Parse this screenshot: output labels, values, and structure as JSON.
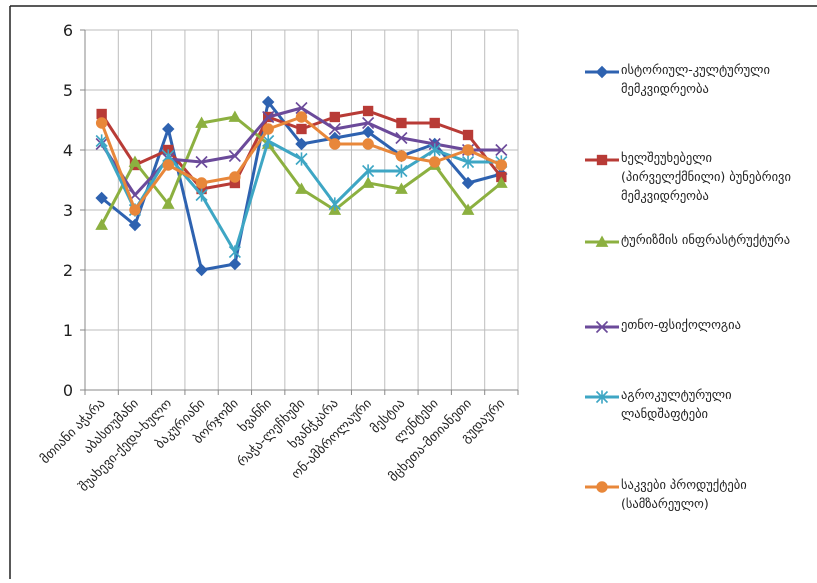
{
  "chart_data": {
    "type": "line",
    "categories": [
      "მთიანი აჭარა",
      "აბასთუმანი",
      "შუახევი-ქედა-ხულო",
      "ბაკურიანი",
      "ბორჯომი",
      "ხვანჩი",
      "რაჭა-ლეჩხუმი",
      "ხვანჭკარა",
      "ონ-ამბროლაური",
      "მესტია",
      "ლენტეხი",
      "მცხეთა-მთიანეთი",
      "გუდაური"
    ],
    "ylim": [
      0,
      6
    ],
    "yticks": [
      "0",
      "1",
      "2",
      "3",
      "4",
      "5",
      "6"
    ],
    "grid": true,
    "legend_position": "right",
    "series": [
      {
        "name": "ისტორიულ-კულტურული მემკვიდრეობა",
        "color": "#2e62b0",
        "marker": "diamond",
        "values": [
          3.2,
          2.75,
          4.35,
          2.0,
          2.1,
          4.8,
          4.1,
          4.2,
          4.3,
          3.9,
          4.1,
          3.45,
          3.6
        ]
      },
      {
        "name": "ხელშეუხებელი (პირველქმნილი) ბუნებრივი მემკვიდრეობა",
        "color": "#b83b36",
        "marker": "square",
        "values": [
          4.6,
          3.75,
          4.0,
          3.35,
          3.45,
          4.55,
          4.35,
          4.55,
          4.65,
          4.45,
          4.45,
          4.25,
          3.55
        ]
      },
      {
        "name": "ტურიზმის ინფრასტრუქტურა",
        "color": "#8cb040",
        "marker": "triangle",
        "values": [
          2.75,
          3.8,
          3.1,
          4.45,
          4.55,
          4.1,
          3.35,
          3.0,
          3.45,
          3.35,
          3.75,
          3.0,
          3.45
        ]
      },
      {
        "name": "ეთნო-ფსიქოლოგია",
        "color": "#6b4a9a",
        "marker": "x",
        "values": [
          4.1,
          3.25,
          3.85,
          3.8,
          3.9,
          4.55,
          4.7,
          4.35,
          4.45,
          4.2,
          4.1,
          4.0,
          4.0
        ]
      },
      {
        "name": "აგროკულტურული ლანდშაფტები",
        "color": "#3ea6c4",
        "marker": "asterisk",
        "values": [
          4.15,
          3.0,
          3.9,
          3.25,
          2.3,
          4.15,
          3.85,
          3.1,
          3.65,
          3.65,
          4.0,
          3.8,
          3.8
        ]
      },
      {
        "name": "საკვები პროდუქტები (სამზარეულო)",
        "color": "#e8873a",
        "marker": "circle",
        "values": [
          4.45,
          3.0,
          3.75,
          3.45,
          3.55,
          4.35,
          4.55,
          4.1,
          4.1,
          3.9,
          3.8,
          4.0,
          3.75
        ]
      }
    ]
  }
}
